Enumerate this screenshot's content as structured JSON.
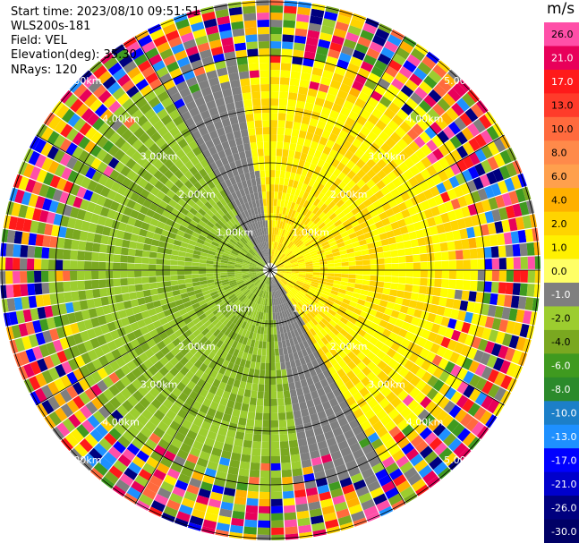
{
  "header": {
    "start_time": "Start time: 2023/08/10 09:51:51",
    "instrument": "WLS200s-181",
    "field": "Field: VEL",
    "elevation": "Elevation(deg): 35.30",
    "nrays": "NRays: 120"
  },
  "range_rings": {
    "labels": [
      "1.00km",
      "2.00km",
      "3.00km",
      "4.00km",
      "5.00km"
    ]
  },
  "colorbar": {
    "unit": "m/s",
    "ticks": [
      "26.0",
      "21.0",
      "17.0",
      "13.0",
      "10.0",
      "8.0",
      "6.0",
      "4.0",
      "2.0",
      "1.0",
      "0.0",
      "-1.0",
      "-2.0",
      "-4.0",
      "-6.0",
      "-8.0",
      "-10.0",
      "-13.0",
      "-17.0",
      "-21.0",
      "-26.0",
      "-30.0"
    ],
    "colors": [
      "#ff4fa8",
      "#e8005a",
      "#ff1a1a",
      "#ff3b2a",
      "#ff6a3d",
      "#ff8a4a",
      "#ffa04d",
      "#ffb000",
      "#ffd400",
      "#fff000",
      "#ffff66",
      "#7f7f7f",
      "#9ccd2f",
      "#7aa820",
      "#3f9a1f",
      "#2b8a2b",
      "#1c7fc8",
      "#1e90ff",
      "#0000ff",
      "#0000cc",
      "#00007f",
      "#000066"
    ]
  }
}
